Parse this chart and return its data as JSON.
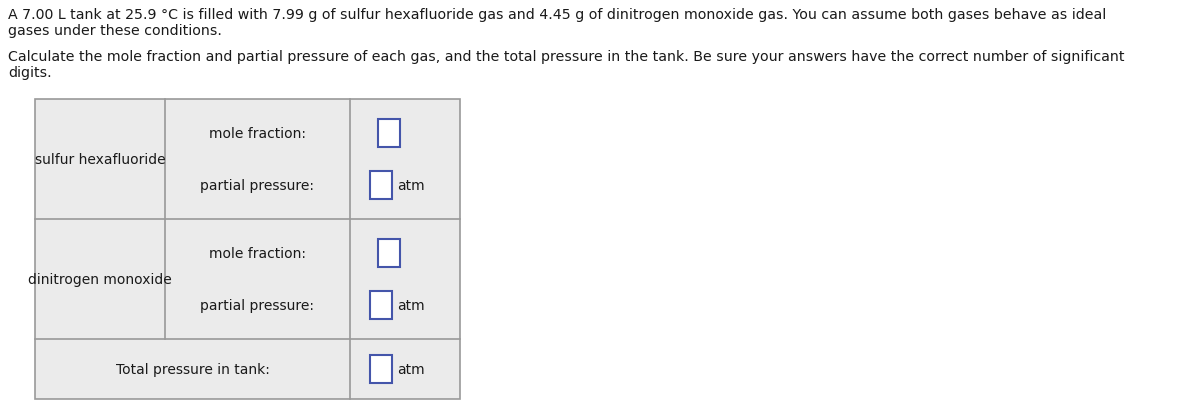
{
  "para1_line1": "A 7.00 L tank at 25.9 °C is filled with 7.99 g of sulfur hexafluoride gas and 4.45 g of dinitrogen monoxide gas. You can assume both gases behave as ideal",
  "para1_line2": "gases under these conditions.",
  "para2_line1": "Calculate the mole fraction and partial pressure of each gas, and the total pressure in the tank. Be sure your answers have the correct number of significant",
  "para2_line2": "digits.",
  "row1_label": "sulfur hexafluoride",
  "row2_label": "dinitrogen monoxide",
  "mole_fraction_label": "mole fraction:",
  "partial_pressure_label": "partial pressure:",
  "total_pressure_label": "Total pressure in tank:",
  "unit_label": "atm",
  "bg_color": "#ffffff",
  "text_color": "#1a1a1a",
  "table_bg": "#ebebeb",
  "table_border_color": "#999999",
  "input_box_bg": "#ffffff",
  "input_box_border": "#4455aa",
  "font_size_body": 10.2,
  "font_size_table": 10.0
}
